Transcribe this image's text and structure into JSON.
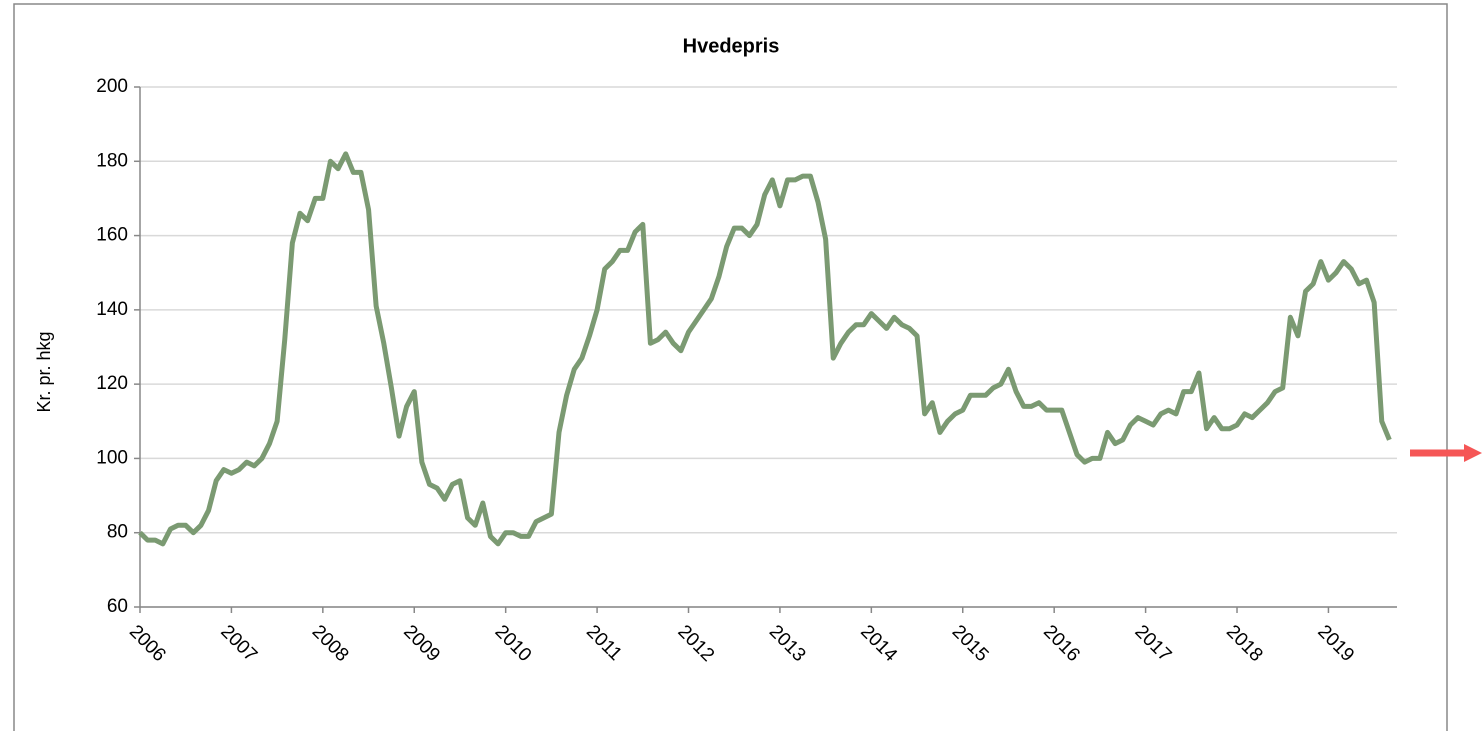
{
  "chart_data": {
    "type": "line",
    "title": "Hvedepris",
    "y_label": "Kr. pr. hkg",
    "categories": [
      "2006",
      null,
      null,
      null,
      null,
      null,
      null,
      null,
      null,
      null,
      null,
      null,
      "2007",
      null,
      null,
      null,
      null,
      null,
      null,
      null,
      null,
      null,
      null,
      null,
      "2008",
      null,
      null,
      null,
      null,
      null,
      null,
      null,
      null,
      null,
      null,
      null,
      "2009",
      null,
      null,
      null,
      null,
      null,
      null,
      null,
      null,
      null,
      null,
      null,
      "2010",
      null,
      null,
      null,
      null,
      null,
      null,
      null,
      null,
      null,
      null,
      null,
      "2011",
      null,
      null,
      null,
      null,
      null,
      null,
      null,
      null,
      null,
      null,
      null,
      "2012",
      null,
      null,
      null,
      null,
      null,
      null,
      null,
      null,
      null,
      null,
      null,
      "2013",
      null,
      null,
      null,
      null,
      null,
      null,
      null,
      null,
      null,
      null,
      null,
      "2014",
      null,
      null,
      null,
      null,
      null,
      null,
      null,
      null,
      null,
      null,
      null,
      "2015",
      null,
      null,
      null,
      null,
      null,
      null,
      null,
      null,
      null,
      null,
      null,
      "2016",
      null,
      null,
      null,
      null,
      null,
      null,
      null,
      null,
      null,
      null,
      null,
      "2017",
      null,
      null,
      null,
      null,
      null,
      null,
      null,
      null,
      null,
      null,
      null,
      "2018",
      null,
      null,
      null,
      null,
      null,
      null,
      null,
      null,
      null,
      null,
      null,
      "2019",
      null,
      null,
      null,
      null,
      null,
      null,
      null,
      null
    ],
    "values": [
      80,
      78,
      78,
      77,
      81,
      82,
      82,
      80,
      82,
      86,
      94,
      97,
      96,
      97,
      99,
      98,
      100,
      104,
      110,
      132,
      158,
      166,
      164,
      170,
      170,
      180,
      178,
      182,
      177,
      177,
      167,
      141,
      131,
      119,
      106,
      114,
      118,
      99,
      93,
      92,
      89,
      93,
      94,
      84,
      82,
      88,
      79,
      77,
      80,
      80,
      79,
      79,
      83,
      84,
      85,
      107,
      117,
      124,
      127,
      133,
      140,
      151,
      153,
      156,
      156,
      161,
      163,
      131,
      132,
      134,
      131,
      129,
      134,
      137,
      140,
      143,
      149,
      157,
      162,
      162,
      160,
      163,
      171,
      175,
      168,
      175,
      175,
      176,
      176,
      169,
      159,
      127,
      131,
      134,
      136,
      136,
      139,
      137,
      135,
      138,
      136,
      135,
      133,
      112,
      115,
      107,
      110,
      112,
      113,
      117,
      117,
      117,
      119,
      120,
      124,
      118,
      114,
      114,
      115,
      113,
      113,
      113,
      107,
      101,
      99,
      100,
      100,
      107,
      104,
      105,
      109,
      111,
      110,
      109,
      112,
      113,
      112,
      118,
      118,
      123,
      108,
      111,
      108,
      108,
      109,
      112,
      111,
      113,
      115,
      118,
      119,
      138,
      133,
      145,
      147,
      153,
      148,
      150,
      153,
      151,
      147,
      148,
      142,
      110,
      105
    ],
    "color": "#7b9a72",
    "ylim": [
      60,
      200
    ],
    "yticks": [
      60,
      80,
      100,
      120,
      140,
      160,
      180,
      200
    ],
    "grid": true
  }
}
